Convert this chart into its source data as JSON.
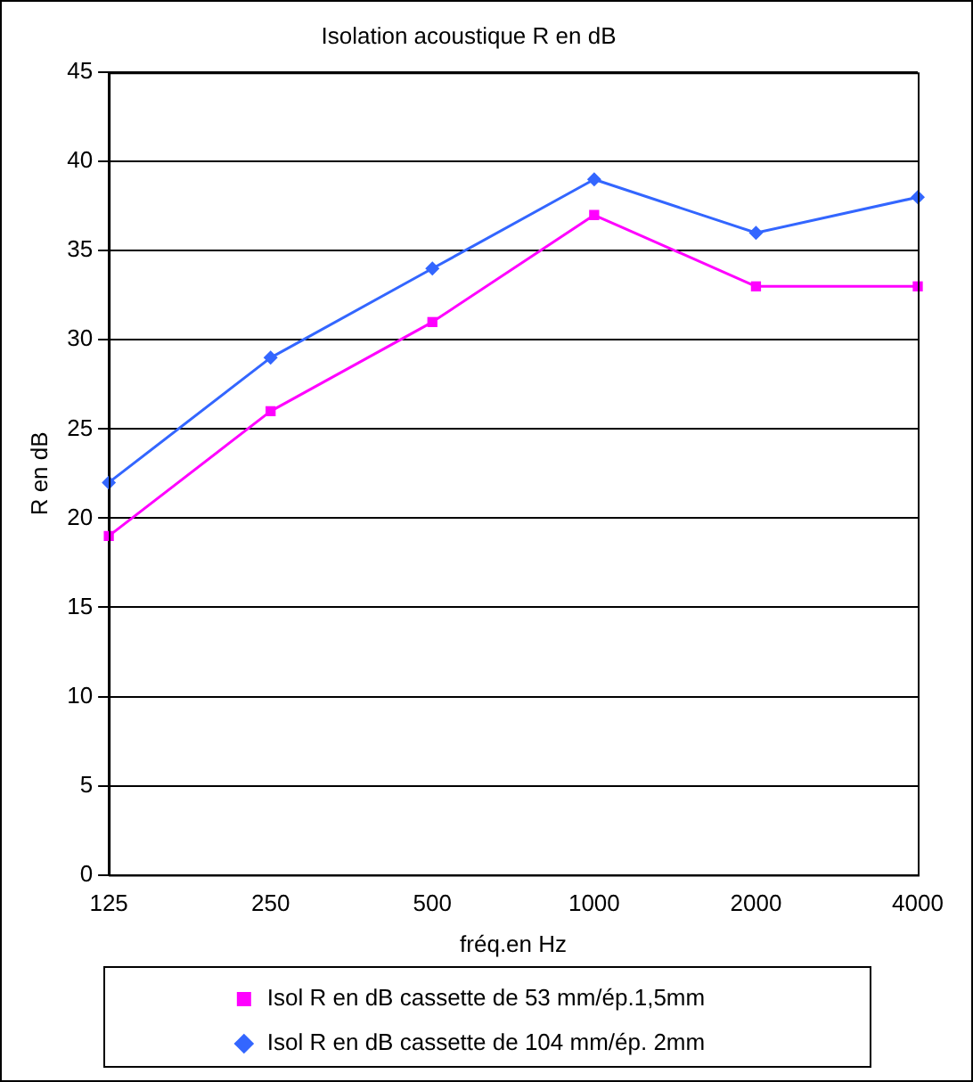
{
  "chart_data": {
    "type": "line",
    "title": "Isolation acoustique R en dB",
    "xlabel": "fréq.en Hz",
    "ylabel": "R en dB",
    "categories": [
      "125",
      "250",
      "500",
      "1000",
      "2000",
      "4000"
    ],
    "series": [
      {
        "name": "Isol R en dB cassette de 53 mm/ép.1,5mm",
        "color": "#ff00ff",
        "marker": "square",
        "values": [
          19,
          26,
          31,
          37,
          33,
          33
        ]
      },
      {
        "name": "Isol R en dB cassette de 104 mm/ép. 2mm",
        "color": "#3366ff",
        "marker": "diamond",
        "values": [
          22,
          29,
          34,
          39,
          36,
          38
        ]
      }
    ],
    "ylim": [
      0,
      45
    ],
    "yticks": [
      0,
      5,
      10,
      15,
      20,
      25,
      30,
      35,
      40,
      45
    ],
    "grid": "y",
    "legend": "bottom",
    "line_style": "solid"
  }
}
